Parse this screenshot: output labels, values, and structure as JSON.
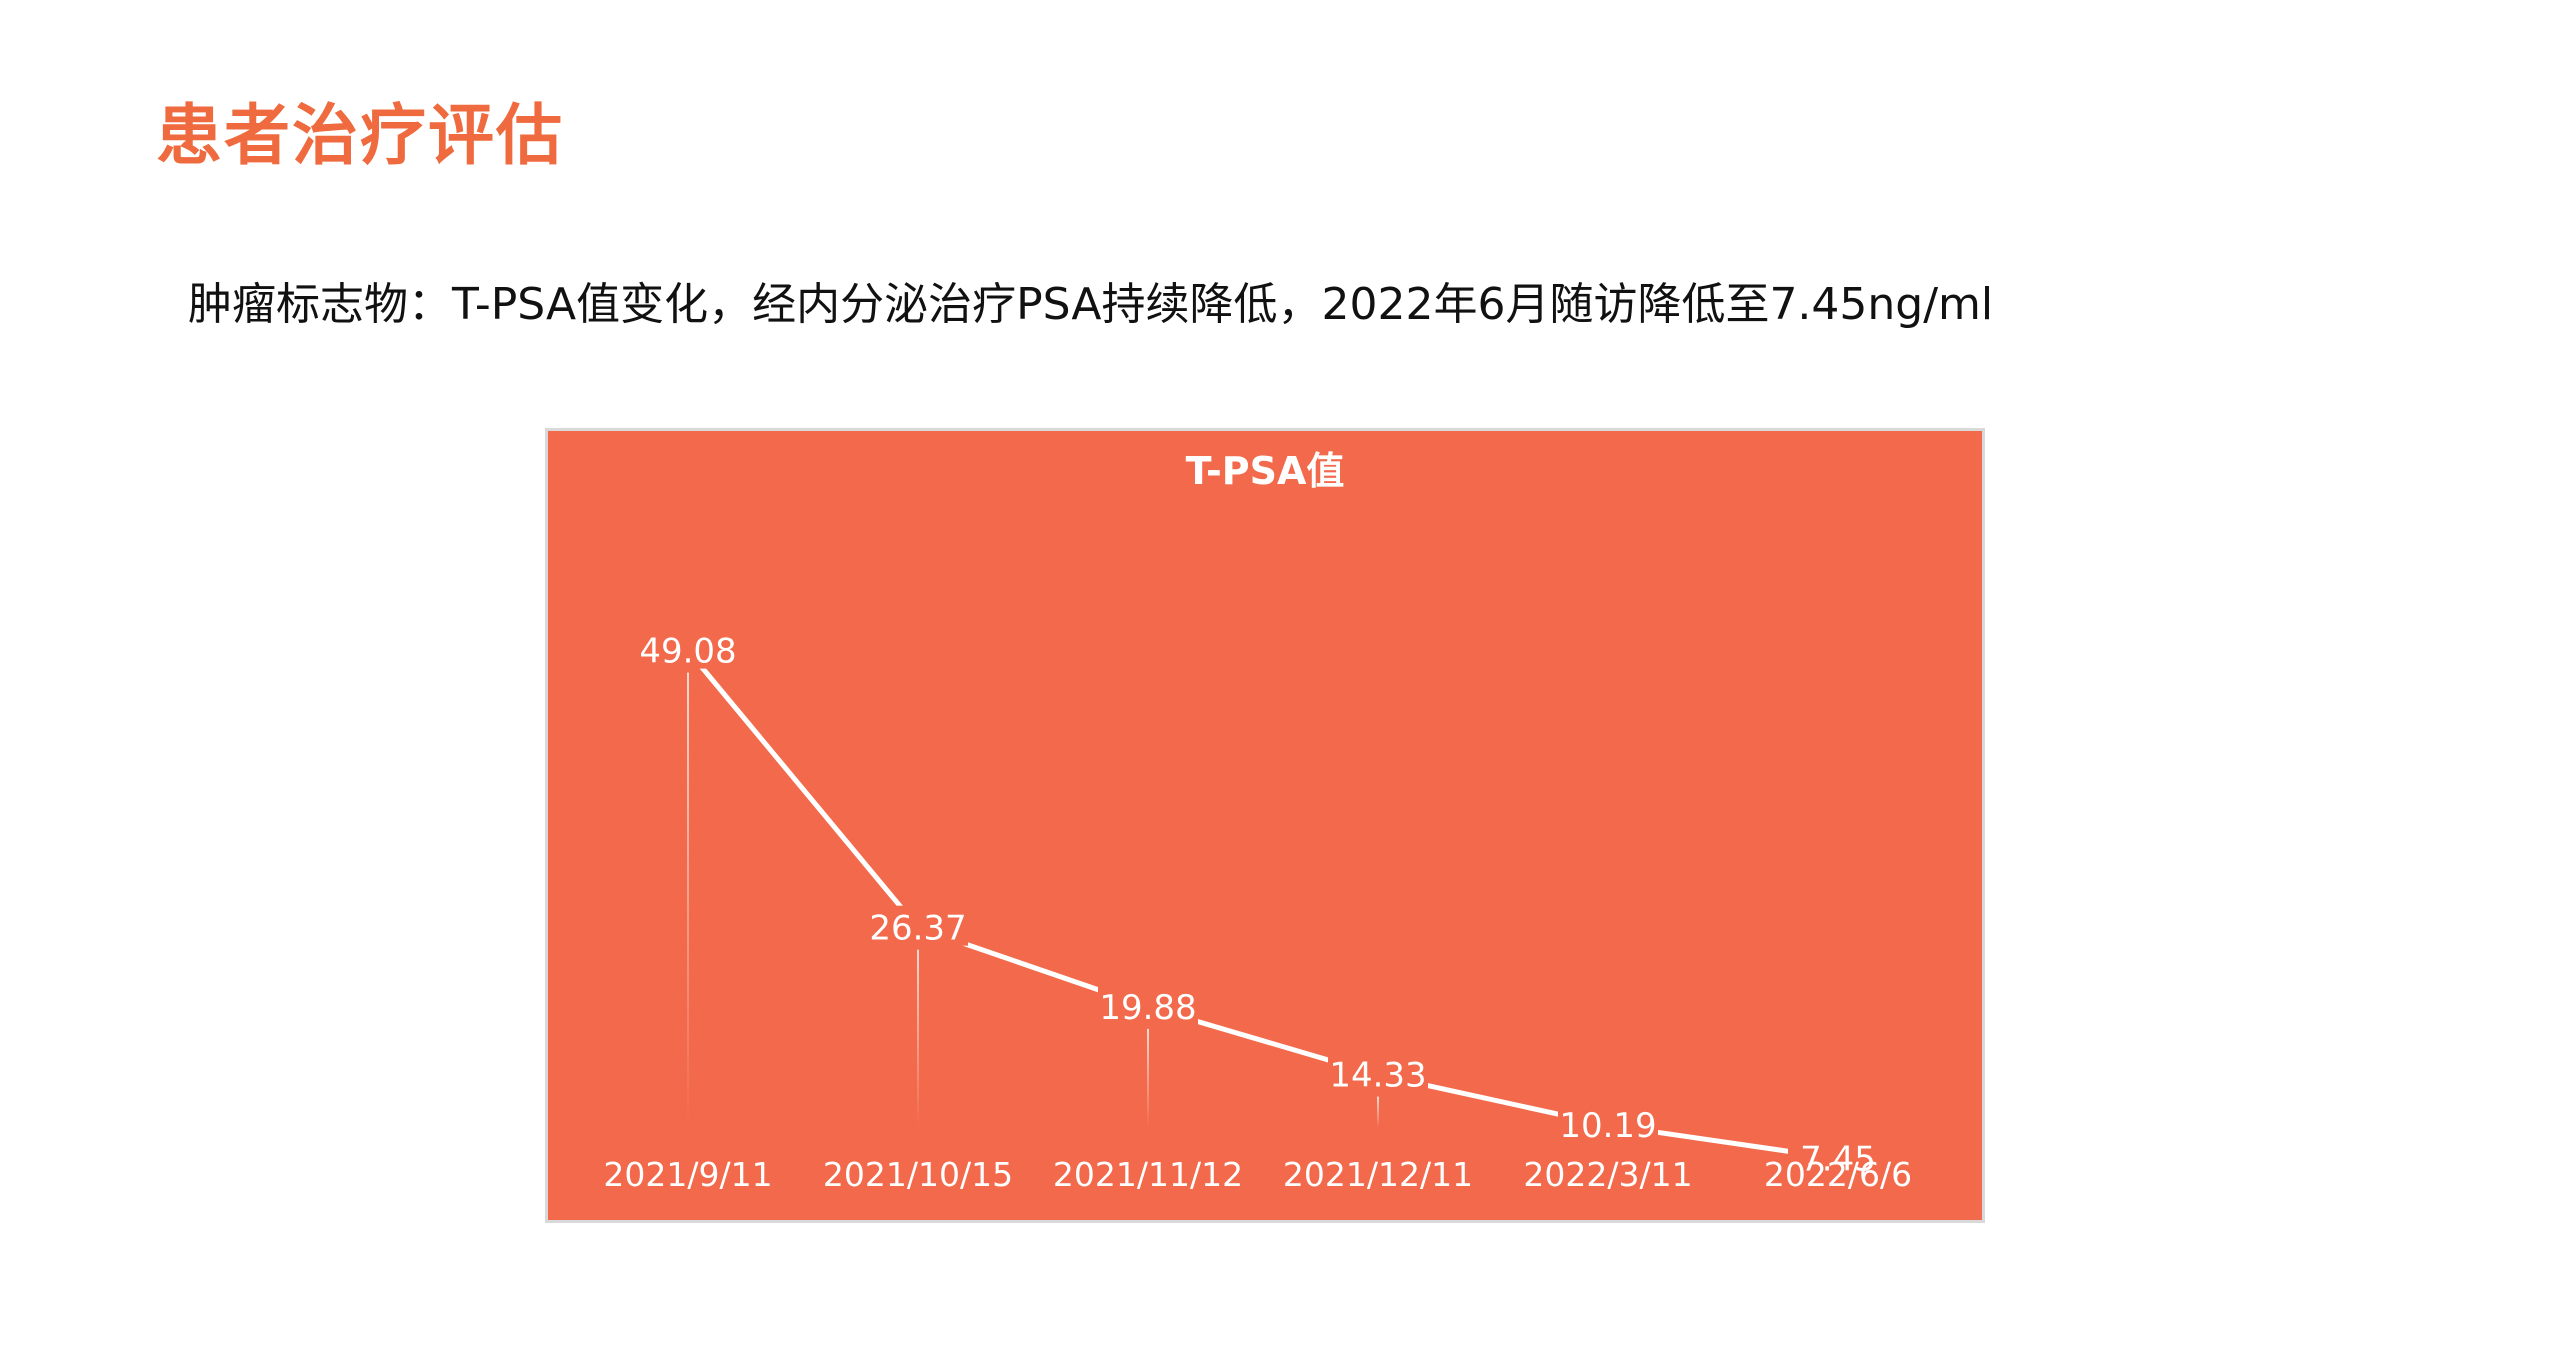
{
  "slide": {
    "title": "患者治疗评估",
    "subtitle": "肿瘤标志物：T-PSA值变化，经内分泌治疗PSA持续降低，2022年6月随访降低至7.45ng/ml"
  },
  "colors": {
    "title": "#ef6a3e",
    "chart_background": "#f2694b",
    "line": "#ffffff",
    "text": "#ffffff"
  },
  "chart_data": {
    "type": "line",
    "title": "T-PSA值",
    "categories": [
      "2021/9/11",
      "2021/10/15",
      "2021/11/12",
      "2021/12/11",
      "2022/3/11",
      "2022/6/6"
    ],
    "series": [
      {
        "values": [
          49.08,
          26.37,
          19.88,
          14.33,
          10.19,
          7.45
        ],
        "labels": [
          "49.08",
          "26.37",
          "19.88",
          "14.33",
          "10.19",
          "7.45"
        ]
      }
    ],
    "grid": false,
    "legend": "none",
    "data_labels": true,
    "drop_lines": true
  }
}
